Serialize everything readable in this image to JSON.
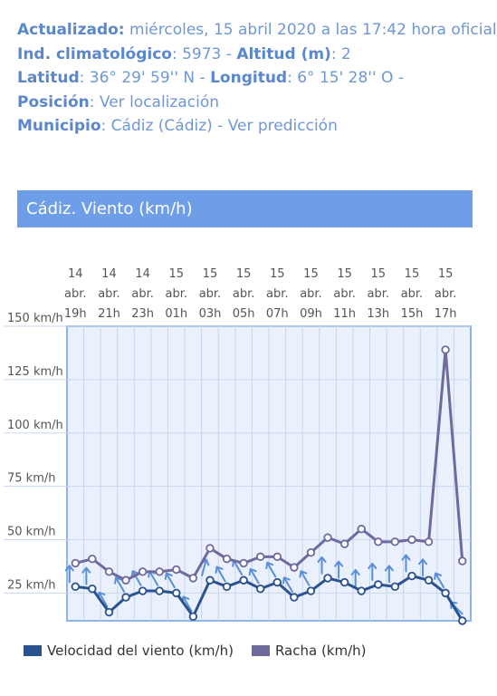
{
  "info": {
    "updated_label": "Actualizado:",
    "updated_value": " miércoles, 15 abril 2020 a las 17:42 hora oficial",
    "index_label": "Ind. climatológico",
    "index_value": ": 5973 - ",
    "altitude_label": "Altitud (m)",
    "altitude_value": ": 2",
    "lat_label": "Latitud",
    "lat_value": ": 36° 29' 59'' N - ",
    "lon_label": "Longitud",
    "lon_value": ": 6° 15' 28'' O -",
    "position_label": "Posición",
    "position_value": ":   Ver localización",
    "municipality_label": "Municipio",
    "municipality_value": ":   Cádiz (Cádiz) - Ver predicción"
  },
  "banner_title": "Cádiz. Viento (km/h)",
  "colors": {
    "speed": "#2a528f",
    "gust": "#6e6a9e",
    "arrow": "#5a8fd8",
    "plot_bg": "#eaf1fc",
    "border": "#8fb4ec"
  },
  "chart_data": {
    "type": "line",
    "x_tick_labels": [
      [
        "14",
        "abr.",
        "19h"
      ],
      [
        "14",
        "abr.",
        "21h"
      ],
      [
        "14",
        "abr.",
        "23h"
      ],
      [
        "15",
        "abr.",
        "01h"
      ],
      [
        "15",
        "abr.",
        "03h"
      ],
      [
        "15",
        "abr.",
        "05h"
      ],
      [
        "15",
        "abr.",
        "07h"
      ],
      [
        "15",
        "abr.",
        "09h"
      ],
      [
        "15",
        "abr.",
        "11h"
      ],
      [
        "15",
        "abr.",
        "13h"
      ],
      [
        "15",
        "abr.",
        "15h"
      ],
      [
        "15",
        "abr.",
        "17h"
      ]
    ],
    "y_ticks": [
      "25 km/h",
      "50 km/h",
      "75 km/h",
      "100 km/h",
      "125 km/h",
      "150 km/h"
    ],
    "y_tick_values": [
      25,
      50,
      75,
      100,
      125,
      150
    ],
    "ylim": [
      12,
      150
    ],
    "series": [
      {
        "name": "Velocidad del viento (km/h)",
        "values": [
          28,
          27,
          16,
          23,
          26,
          26,
          25,
          14,
          31,
          28,
          31,
          27,
          30,
          23,
          26,
          32,
          30,
          26,
          29,
          28,
          33,
          31,
          25,
          12
        ]
      },
      {
        "name": "Racha (km/h)",
        "values": [
          39,
          41,
          35,
          31,
          35,
          35,
          36,
          32,
          46,
          41,
          39,
          42,
          42,
          37,
          44,
          51,
          48,
          55,
          49,
          49,
          50,
          49,
          139,
          40
        ]
      }
    ],
    "wind_direction_deg": [
      0,
      0,
      330,
      330,
      330,
      330,
      330,
      330,
      15,
      330,
      330,
      330,
      330,
      330,
      330,
      0,
      0,
      0,
      0,
      0,
      0,
      0,
      330,
      315
    ]
  },
  "legend": {
    "speed_label": "Velocidad del viento (km/h)",
    "gust_label": "Racha (km/h)"
  }
}
